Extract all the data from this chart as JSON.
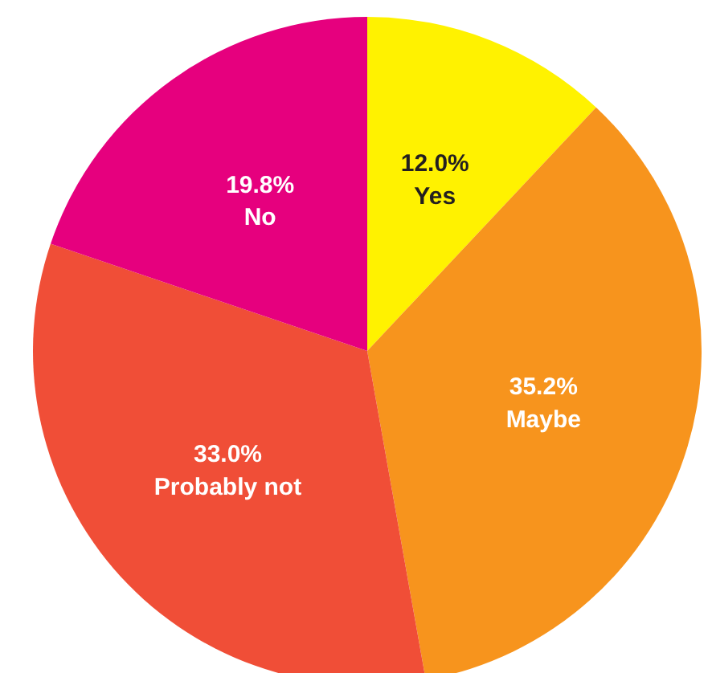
{
  "chart_data": {
    "type": "pie",
    "categories": [
      "Yes",
      "Maybe",
      "Probably not",
      "No"
    ],
    "values": [
      12.0,
      35.2,
      33.0,
      19.8
    ],
    "colors": [
      "#fff200",
      "#f7941d",
      "#f04e37",
      "#e6007e"
    ],
    "value_labels": [
      "12.0%",
      "35.2%",
      "33.0%",
      "19.8%"
    ]
  }
}
